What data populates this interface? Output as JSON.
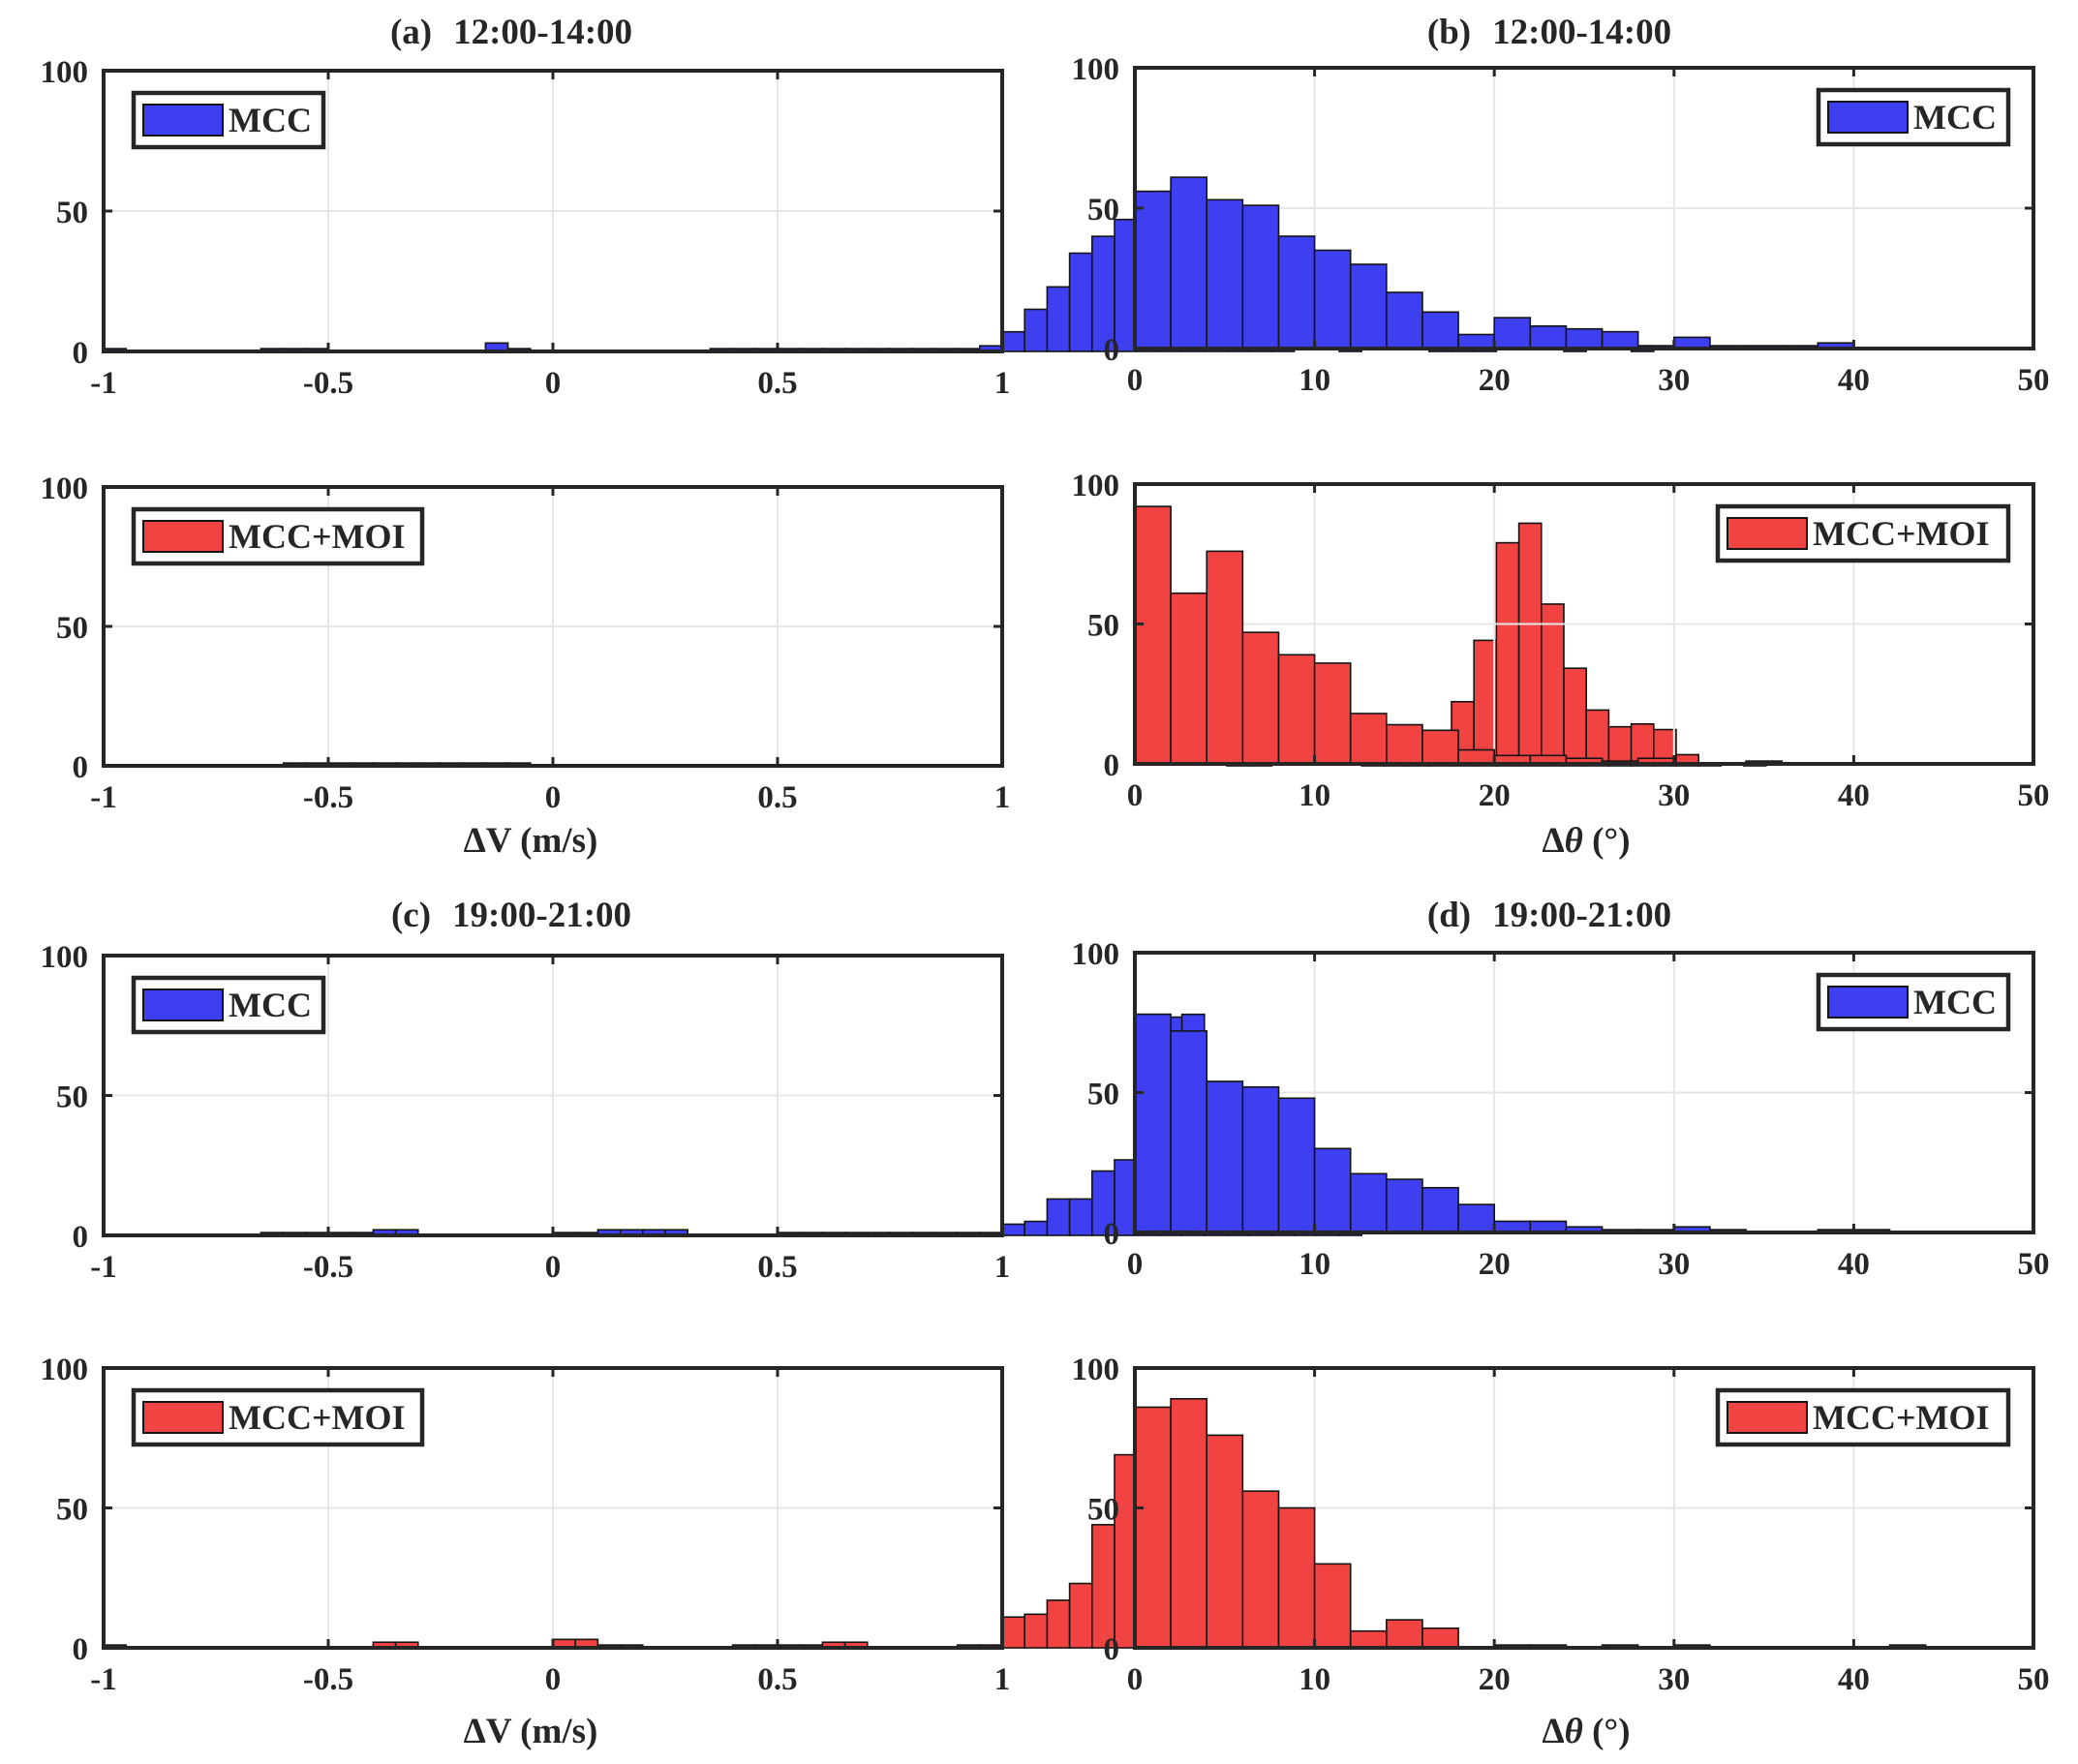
{
  "figure": {
    "colors": {
      "blue": "#3f3ff2",
      "red": "#f24343",
      "axis": "#262626",
      "grid": "#e6e6e6"
    },
    "panels": [
      {
        "id": "a",
        "label": "(a)",
        "time": "12:00-14:00",
        "kind": "dv",
        "xlabel": "ΔV (m/s)"
      },
      {
        "id": "b",
        "label": "(b)",
        "time": "12:00-14:00",
        "kind": "dt",
        "xlabel": "Δθ (°)"
      },
      {
        "id": "c",
        "label": "(c)",
        "time": "19:00-21:00",
        "kind": "dv",
        "xlabel": "ΔV (m/s)"
      },
      {
        "id": "d",
        "label": "(d)",
        "time": "19:00-21:00",
        "kind": "dt",
        "xlabel": "Δθ (°)"
      }
    ]
  },
  "chart_data": [
    {
      "type": "bar",
      "panel": "a",
      "title": "(a) 12:00-14:00",
      "legend": "MCC",
      "legend_position": "top-left",
      "color": "blue",
      "xlabel": "",
      "ylabel": "",
      "xlim": [
        -1,
        1
      ],
      "ylim": [
        0,
        100
      ],
      "xticks": [
        -1,
        -0.5,
        0,
        0.5,
        1
      ],
      "xtick_labels": [
        "-1",
        "-0.5",
        "0",
        "0.5",
        "1"
      ],
      "yticks": [
        0,
        50,
        100
      ],
      "bin_start": -1,
      "bin_width": 0.05,
      "values": [
        1,
        0,
        0,
        0,
        0,
        0,
        0,
        1,
        1,
        1,
        0,
        0,
        0,
        0,
        0,
        0,
        0,
        3,
        1,
        0,
        0,
        0,
        0,
        0,
        0,
        0,
        0,
        1,
        1,
        1,
        1,
        1,
        1,
        1,
        1,
        1,
        1,
        1,
        1,
        2,
        7,
        15,
        23,
        35,
        41,
        47,
        46,
        57,
        44,
        37,
        25,
        5,
        7,
        0,
        0,
        1,
        0,
        0,
        0,
        2,
        2,
        1,
        0,
        0,
        0,
        2,
        0,
        0,
        2,
        0,
        0,
        0,
        0,
        0,
        0,
        0,
        0,
        0,
        0,
        0
      ]
    },
    {
      "type": "bar",
      "panel": "a",
      "title": "",
      "legend": "MCC+MOI",
      "legend_position": "top-left",
      "color": "red",
      "xlabel": "ΔV (m/s)",
      "ylabel": "",
      "xlim": [
        -1,
        1
      ],
      "ylim": [
        0,
        100
      ],
      "xticks": [
        -1,
        -0.5,
        0,
        0.5,
        1
      ],
      "xtick_labels": [
        "-1",
        "-0.5",
        "0",
        "0.5",
        "1"
      ],
      "yticks": [
        0,
        50,
        100
      ],
      "bin_start": -1,
      "bin_width": 0.05,
      "values": [
        0,
        0,
        0,
        0,
        0,
        0,
        0,
        0,
        1,
        1,
        1,
        1,
        1,
        1,
        1,
        1,
        1,
        1,
        1,
        0,
        0,
        0,
        0,
        0,
        0,
        0,
        0,
        0,
        0,
        0,
        0,
        0,
        0,
        0,
        0,
        0,
        0,
        0,
        0,
        0,
        0,
        0,
        0,
        0,
        0,
        0,
        0,
        0,
        0,
        0,
        2,
        2,
        0,
        0,
        0,
        0,
        1,
        1,
        3,
        6,
        23,
        45,
        80,
        87,
        58,
        35,
        20,
        14,
        15,
        13,
        4,
        1,
        0,
        1,
        0,
        0,
        0,
        0,
        0,
        0
      ]
    },
    {
      "type": "bar",
      "panel": "b",
      "title": "(b) 12:00-14:00",
      "legend": "MCC",
      "legend_position": "top-right",
      "color": "blue",
      "xlabel": "",
      "ylabel": "",
      "xlim": [
        0,
        50
      ],
      "ylim": [
        0,
        100
      ],
      "xticks": [
        0,
        10,
        20,
        30,
        40,
        50
      ],
      "yticks": [
        0,
        50,
        100
      ],
      "bin_start": 0,
      "bin_width": 2,
      "values": [
        56,
        61,
        53,
        51,
        40,
        35,
        30,
        20,
        13,
        5,
        11,
        8,
        7,
        6,
        1,
        4,
        1,
        1,
        1,
        2,
        0,
        0,
        0,
        0,
        0
      ]
    },
    {
      "type": "bar",
      "panel": "b",
      "title": "",
      "legend": "MCC+MOI",
      "legend_position": "top-right",
      "color": "red",
      "xlabel": "Δθ (°)",
      "ylabel": "",
      "xlim": [
        0,
        50
      ],
      "ylim": [
        0,
        100
      ],
      "xticks": [
        0,
        10,
        20,
        30,
        40,
        50
      ],
      "yticks": [
        0,
        50,
        100
      ],
      "bin_start": 0,
      "bin_width": 2,
      "values": [
        92,
        61,
        76,
        47,
        39,
        36,
        18,
        14,
        12,
        5,
        3,
        3,
        2,
        1,
        2,
        0,
        0,
        1,
        0,
        0,
        0,
        0,
        0,
        0,
        0
      ]
    },
    {
      "type": "bar",
      "panel": "c",
      "title": "(c) 19:00-21:00",
      "legend": "MCC",
      "legend_position": "top-left",
      "color": "blue",
      "xlabel": "",
      "ylabel": "",
      "xlim": [
        -1,
        1
      ],
      "ylim": [
        0,
        100
      ],
      "xticks": [
        -1,
        -0.5,
        0,
        0.5,
        1
      ],
      "xtick_labels": [
        "-1",
        "-0.5",
        "0",
        "0.5",
        "1"
      ],
      "yticks": [
        0,
        50,
        100
      ],
      "bin_start": -1,
      "bin_width": 0.05,
      "values": [
        0,
        0,
        0,
        0,
        0,
        0,
        0,
        1,
        1,
        1,
        1,
        1,
        2,
        2,
        0,
        0,
        0,
        0,
        0,
        0,
        1,
        1,
        2,
        2,
        2,
        2,
        0,
        0,
        0,
        0,
        1,
        1,
        1,
        1,
        1,
        1,
        1,
        1,
        1,
        1,
        4,
        5,
        13,
        13,
        23,
        27,
        57,
        78,
        79,
        44,
        24,
        15,
        6,
        5,
        7,
        3,
        0,
        0,
        0,
        0,
        0,
        0,
        0,
        0,
        0,
        0,
        0,
        0,
        0,
        0,
        0,
        0,
        0,
        0,
        0,
        0,
        0,
        0,
        0,
        0
      ]
    },
    {
      "type": "bar",
      "panel": "c",
      "title": "",
      "legend": "MCC+MOI",
      "legend_position": "top-left",
      "color": "red",
      "xlabel": "ΔV (m/s)",
      "ylabel": "",
      "xlim": [
        -1,
        1
      ],
      "ylim": [
        0,
        100
      ],
      "xticks": [
        -1,
        -0.5,
        0,
        0.5,
        1
      ],
      "xtick_labels": [
        "-1",
        "-0.5",
        "0",
        "0.5",
        "1"
      ],
      "yticks": [
        0,
        50,
        100
      ],
      "bin_start": -1,
      "bin_width": 0.05,
      "values": [
        1,
        0,
        0,
        0,
        0,
        0,
        0,
        0,
        0,
        0,
        0,
        0,
        2,
        2,
        0,
        0,
        0,
        0,
        0,
        0,
        3,
        3,
        1,
        1,
        0,
        0,
        0,
        0,
        1,
        1,
        1,
        1,
        2,
        2,
        0,
        0,
        0,
        0,
        1,
        1,
        11,
        12,
        17,
        23,
        44,
        69,
        66,
        62,
        54,
        47,
        37,
        13,
        4,
        0,
        0,
        0,
        0,
        1,
        1,
        0,
        0,
        0,
        0,
        0,
        0,
        0,
        0,
        0,
        0,
        0,
        0,
        0,
        0,
        0,
        0,
        0,
        0,
        0,
        0,
        0
      ]
    },
    {
      "type": "bar",
      "panel": "d",
      "title": "(d) 19:00-21:00",
      "legend": "MCC",
      "legend_position": "top-right",
      "color": "blue",
      "xlabel": "",
      "ylabel": "",
      "xlim": [
        0,
        50
      ],
      "ylim": [
        0,
        100
      ],
      "xticks": [
        0,
        10,
        20,
        30,
        40,
        50
      ],
      "yticks": [
        0,
        50,
        100
      ],
      "bin_start": 0,
      "bin_width": 2,
      "values": [
        78,
        72,
        54,
        52,
        48,
        30,
        21,
        19,
        16,
        10,
        4,
        4,
        2,
        1,
        1,
        2,
        1,
        0,
        0,
        1,
        1,
        0,
        0,
        0,
        0
      ]
    },
    {
      "type": "bar",
      "panel": "d",
      "title": "",
      "legend": "MCC+MOI",
      "legend_position": "top-right",
      "color": "red",
      "xlabel": "Δθ (°)",
      "ylabel": "",
      "xlim": [
        0,
        50
      ],
      "ylim": [
        0,
        100
      ],
      "xticks": [
        0,
        10,
        20,
        30,
        40,
        50
      ],
      "yticks": [
        0,
        50,
        100
      ],
      "bin_start": 0,
      "bin_width": 2,
      "values": [
        86,
        89,
        76,
        56,
        50,
        30,
        6,
        10,
        7,
        0,
        1,
        1,
        0,
        1,
        0,
        1,
        0,
        0,
        0,
        0,
        0,
        1,
        0,
        0,
        0
      ]
    }
  ]
}
